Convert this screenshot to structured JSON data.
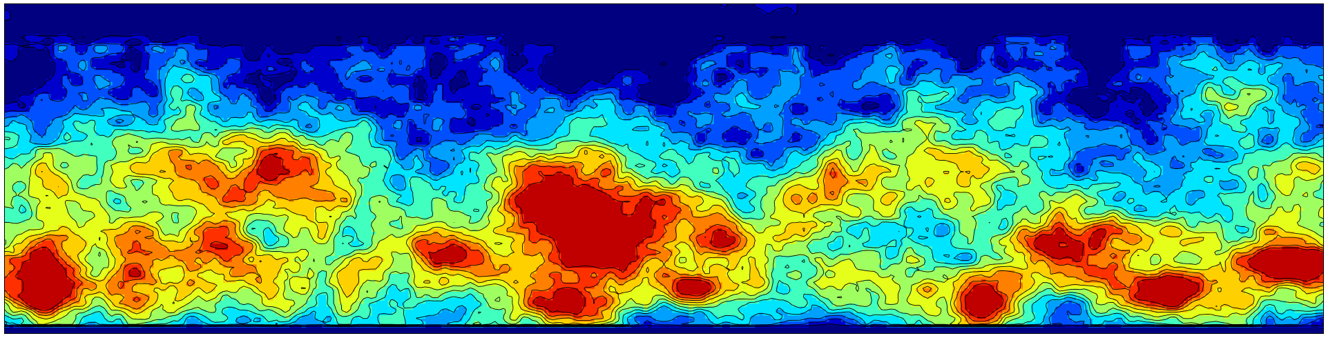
{
  "figure": {
    "kind": "filled contour field",
    "colormap": [
      "#000080",
      "#0000cd",
      "#0050ff",
      "#00a0ff",
      "#00e5ff",
      "#40ffbf",
      "#9fff60",
      "#e5ff1a",
      "#ffd000",
      "#ff8000",
      "#ff3000",
      "#c00000"
    ],
    "contour_line_color": "#000000"
  }
}
